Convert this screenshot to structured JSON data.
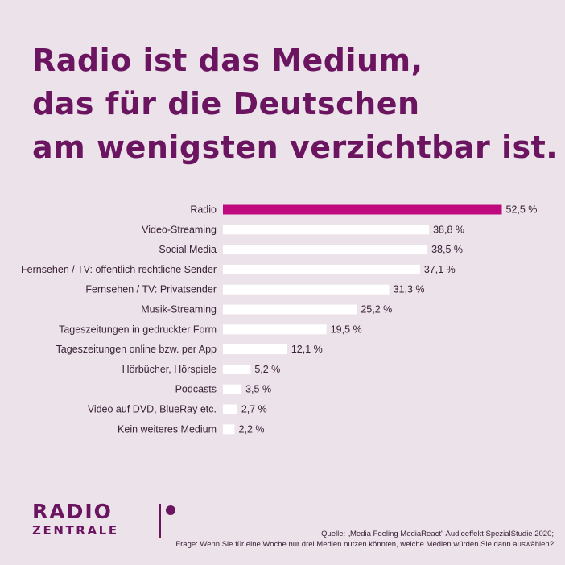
{
  "headline": {
    "line1": "Radio ist das Medium,",
    "line2": "das für die Deutschen",
    "line3": "am wenigsten verzichtbar ist."
  },
  "colors": {
    "background": "#ece2e9",
    "headline": "#6b1560",
    "highlight_bar": "#c0097e",
    "bar": "#ffffff"
  },
  "chart_data": {
    "type": "bar",
    "orientation": "horizontal",
    "categories": [
      "Radio",
      "Video-Streaming",
      "Social Media",
      "Fernsehen / TV: öffentlich rechtliche Sender",
      "Fernsehen / TV: Privatsender",
      "Musik-Streaming",
      "Tageszeitungen in gedruckter Form",
      "Tageszeitungen online bzw. per App",
      "Hörbücher, Hörspiele",
      "Podcasts",
      "Video auf DVD, BlueRay etc.",
      "Kein weiteres Medium"
    ],
    "values": [
      52.5,
      38.8,
      38.5,
      37.1,
      31.3,
      25.2,
      19.5,
      12.1,
      5.2,
      3.5,
      2.7,
      2.2
    ],
    "value_labels": [
      "52,5 %",
      "38,8 %",
      "38,5 %",
      "37,1 %",
      "31,3 %",
      "25,2 %",
      "19,5 %",
      "12,1 %",
      "5,2 %",
      "3,5 %",
      "2,7 %",
      "2,2 %"
    ],
    "highlight_index": 0,
    "grid": false,
    "legend": "none"
  },
  "logo": {
    "top": "RADIO",
    "bottom": "ZENTRALE"
  },
  "source": {
    "line1": "Quelle: „Media Feeling MediaReact\" Audioeffekt SpezialStudie 2020;",
    "line2": "Frage: Wenn Sie für eine Woche nur drei Medien nutzen könnten, welche Medien würden Sie dann auswählen?"
  }
}
